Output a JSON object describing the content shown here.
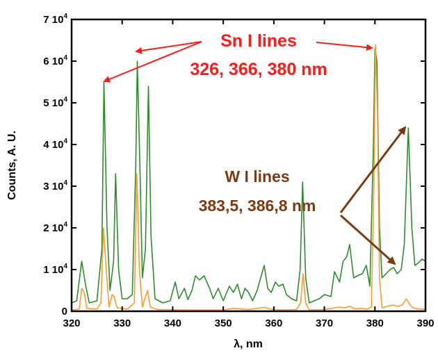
{
  "chart_data": {
    "type": "line",
    "xlabel": "λ, nm",
    "ylabel": "Counts, A. U.",
    "xlim": [
      320,
      390
    ],
    "ylim": [
      0,
      70000
    ],
    "x_ticks": [
      320,
      330,
      340,
      350,
      360,
      370,
      380,
      390
    ],
    "y_ticks": [
      {
        "value": 0,
        "label": "0"
      },
      {
        "value": 10000,
        "label": "1 10",
        "exp": "4"
      },
      {
        "value": 20000,
        "label": "2 10",
        "exp": "4"
      },
      {
        "value": 30000,
        "label": "3 10",
        "exp": "4"
      },
      {
        "value": 40000,
        "label": "4 10",
        "exp": "4"
      },
      {
        "value": 50000,
        "label": "5 10",
        "exp": "4"
      },
      {
        "value": 60000,
        "label": "6 10",
        "exp": "4"
      },
      {
        "value": 70000,
        "label": "7 10",
        "exp": "4"
      }
    ],
    "grid": false,
    "legend": "none",
    "series": [
      {
        "color": "#2e8b2e",
        "points": [
          [
            320,
            2000
          ],
          [
            321,
            2500
          ],
          [
            322,
            12000
          ],
          [
            322.8,
            6000
          ],
          [
            323.5,
            2000
          ],
          [
            325,
            2500
          ],
          [
            326,
            15000
          ],
          [
            326.4,
            55000
          ],
          [
            327,
            20000
          ],
          [
            327.6,
            5000
          ],
          [
            328.3,
            12000
          ],
          [
            328.7,
            33000
          ],
          [
            329.3,
            10000
          ],
          [
            330,
            3000
          ],
          [
            331,
            3000
          ],
          [
            332,
            4000
          ],
          [
            332.7,
            35000
          ],
          [
            333,
            60000
          ],
          [
            333.5,
            35000
          ],
          [
            334,
            8000
          ],
          [
            334.6,
            15000
          ],
          [
            335.2,
            54000
          ],
          [
            335.7,
            18000
          ],
          [
            336.5,
            3000
          ],
          [
            338,
            2000
          ],
          [
            339.5,
            2500
          ],
          [
            340.5,
            7000
          ],
          [
            341.2,
            3000
          ],
          [
            342.3,
            5500
          ],
          [
            343,
            2800
          ],
          [
            343.8,
            5000
          ],
          [
            344.5,
            8500
          ],
          [
            345.3,
            7500
          ],
          [
            346.2,
            8500
          ],
          [
            347.3,
            5500
          ],
          [
            348,
            3000
          ],
          [
            349,
            5500
          ],
          [
            350,
            2500
          ],
          [
            351.2,
            6000
          ],
          [
            352,
            4500
          ],
          [
            352.8,
            6500
          ],
          [
            353.6,
            3000
          ],
          [
            354.3,
            5500
          ],
          [
            355,
            4500
          ],
          [
            355.8,
            2500
          ],
          [
            356.7,
            5000
          ],
          [
            357.5,
            8500
          ],
          [
            358.1,
            11000
          ],
          [
            358.8,
            5500
          ],
          [
            359.5,
            4500
          ],
          [
            360.3,
            7000
          ],
          [
            361,
            6000
          ],
          [
            361.8,
            6500
          ],
          [
            362.5,
            4000
          ],
          [
            363.5,
            3000
          ],
          [
            364.5,
            2500
          ],
          [
            365.2,
            10000
          ],
          [
            365.7,
            31000
          ],
          [
            366.3,
            8000
          ],
          [
            367,
            2000
          ],
          [
            368,
            2500
          ],
          [
            369,
            3000
          ],
          [
            370,
            4000
          ],
          [
            371.3,
            3500
          ],
          [
            372,
            9500
          ],
          [
            373,
            7000
          ],
          [
            373.7,
            12000
          ],
          [
            374.4,
            13000
          ],
          [
            375,
            16000
          ],
          [
            375.8,
            8000
          ],
          [
            376.5,
            8500
          ],
          [
            377.5,
            9000
          ],
          [
            378.3,
            11000
          ],
          [
            379,
            6000
          ],
          [
            379.7,
            40000
          ],
          [
            380,
            63000
          ],
          [
            380.4,
            60000
          ],
          [
            380.9,
            20000
          ],
          [
            381.4,
            8000
          ],
          [
            382.2,
            9000
          ],
          [
            383,
            10000
          ],
          [
            383.7,
            10500
          ],
          [
            384.4,
            9000
          ],
          [
            385.2,
            10000
          ],
          [
            385.8,
            16000
          ],
          [
            386.6,
            44000
          ],
          [
            387.3,
            20000
          ],
          [
            387.9,
            11000
          ],
          [
            388.5,
            11500
          ],
          [
            389.3,
            12500
          ],
          [
            390,
            12000
          ]
        ]
      },
      {
        "color": "#ff9a2e",
        "points": [
          [
            320,
            300
          ],
          [
            321.5,
            500
          ],
          [
            322,
            5500
          ],
          [
            322.5,
            4500
          ],
          [
            323,
            700
          ],
          [
            325,
            500
          ],
          [
            325.8,
            2000
          ],
          [
            326.3,
            20000
          ],
          [
            326.8,
            11000
          ],
          [
            327.4,
            1000
          ],
          [
            328,
            4000
          ],
          [
            328.4,
            3500
          ],
          [
            329,
            800
          ],
          [
            331,
            500
          ],
          [
            332.4,
            2000
          ],
          [
            332.9,
            33000
          ],
          [
            333.4,
            10000
          ],
          [
            334,
            1000
          ],
          [
            334.5,
            3000
          ],
          [
            335,
            5000
          ],
          [
            335.6,
            1000
          ],
          [
            337,
            400
          ],
          [
            345,
            300
          ],
          [
            350,
            300
          ],
          [
            352,
            700
          ],
          [
            355,
            400
          ],
          [
            358,
            900
          ],
          [
            360,
            400
          ],
          [
            362,
            300
          ],
          [
            364.5,
            400
          ],
          [
            365.3,
            2000
          ],
          [
            365.8,
            9000
          ],
          [
            366.3,
            2000
          ],
          [
            367,
            300
          ],
          [
            370,
            400
          ],
          [
            373,
            1000
          ],
          [
            374,
            800
          ],
          [
            375,
            1200
          ],
          [
            376,
            600
          ],
          [
            377.5,
            700
          ],
          [
            378.5,
            500
          ],
          [
            379.3,
            1000
          ],
          [
            379.8,
            30000
          ],
          [
            380.1,
            64000
          ],
          [
            380.5,
            48000
          ],
          [
            380.9,
            8000
          ],
          [
            381.4,
            800
          ],
          [
            382.5,
            1200
          ],
          [
            383.5,
            1500
          ],
          [
            384.5,
            1200
          ],
          [
            385.4,
            1500
          ],
          [
            386.2,
            3000
          ],
          [
            386.8,
            1800
          ],
          [
            387.5,
            800
          ],
          [
            389,
            500
          ],
          [
            390,
            500
          ]
        ]
      }
    ],
    "annotations": [
      {
        "color": "#ff1a1a",
        "lines": [
          "Sn I lines",
          "326, 366, 380 nm"
        ]
      },
      {
        "color": "#7a3a12",
        "lines": [
          "W I lines",
          "383,5, 386,8 nm"
        ]
      }
    ]
  }
}
